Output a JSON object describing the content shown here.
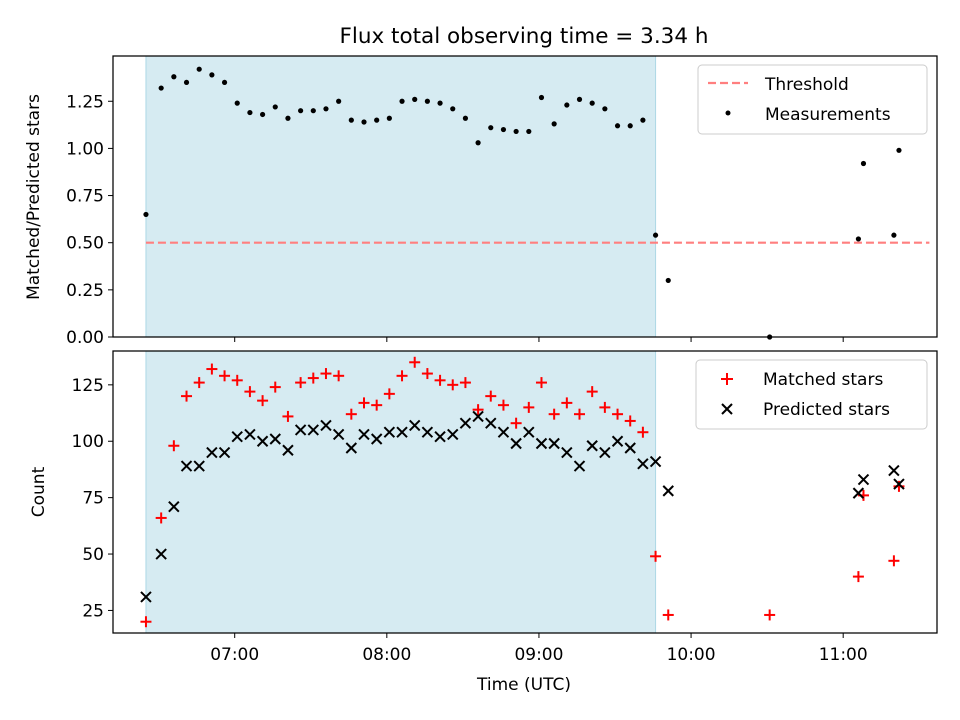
{
  "chart_data": {
    "title": "Flux total observing time = 3.34 h",
    "xlabel": "Time (UTC)",
    "xlim": [
      "06:12",
      "11:37"
    ],
    "xticks": [
      "07:00",
      "08:00",
      "09:00",
      "10:00",
      "11:00"
    ],
    "shaded_interval": {
      "start": "06:25",
      "end": "09:46",
      "color": "#add8e6"
    },
    "colors": {
      "threshold": "#ff7f7f",
      "measurements": "#000000",
      "matched": "#ff0000",
      "predicted": "#000000",
      "shade": "#add8e6"
    },
    "panels": [
      {
        "type": "scatter",
        "ylabel": "Matched/Predicted stars",
        "ylim": [
          0,
          1.49
        ],
        "yticks": [
          "0.00",
          "0.25",
          "0.50",
          "0.75",
          "1.00",
          "1.25"
        ],
        "legend": "top-right",
        "series": [
          {
            "name": "Threshold",
            "style": "dashed-line",
            "x": [
              "06:25",
              "11:34"
            ],
            "y": [
              0.5,
              0.5
            ]
          },
          {
            "name": "Measurements",
            "style": "dot",
            "x": [
              "06:25",
              "06:31",
              "06:36",
              "06:41",
              "06:46",
              "06:51",
              "06:56",
              "07:01",
              "07:06",
              "07:11",
              "07:16",
              "07:21",
              "07:26",
              "07:31",
              "07:36",
              "07:41",
              "07:46",
              "07:51",
              "07:56",
              "08:01",
              "08:06",
              "08:11",
              "08:16",
              "08:21",
              "08:26",
              "08:31",
              "08:36",
              "08:41",
              "08:46",
              "08:51",
              "08:56",
              "09:01",
              "09:06",
              "09:11",
              "09:16",
              "09:21",
              "09:26",
              "09:31",
              "09:36",
              "09:41",
              "09:46",
              "09:51",
              "10:31",
              "11:06",
              "11:08",
              "11:20",
              "11:22"
            ],
            "y": [
              0.65,
              1.32,
              1.38,
              1.35,
              1.42,
              1.39,
              1.35,
              1.24,
              1.19,
              1.18,
              1.22,
              1.16,
              1.2,
              1.2,
              1.21,
              1.25,
              1.15,
              1.14,
              1.15,
              1.16,
              1.25,
              1.26,
              1.25,
              1.24,
              1.21,
              1.16,
              1.03,
              1.11,
              1.1,
              1.09,
              1.09,
              1.27,
              1.13,
              1.23,
              1.26,
              1.24,
              1.21,
              1.12,
              1.12,
              1.15,
              0.54,
              0.3,
              0.0,
              0.52,
              0.92,
              0.54,
              0.99
            ]
          }
        ]
      },
      {
        "type": "scatter",
        "ylabel": "Count",
        "ylim": [
          15,
          140
        ],
        "yticks": [
          "25",
          "50",
          "75",
          "100",
          "125"
        ],
        "legend": "top-right",
        "series": [
          {
            "name": "Matched stars",
            "style": "plus",
            "x": [
              "06:25",
              "06:31",
              "06:36",
              "06:41",
              "06:46",
              "06:51",
              "06:56",
              "07:01",
              "07:06",
              "07:11",
              "07:16",
              "07:21",
              "07:26",
              "07:31",
              "07:36",
              "07:41",
              "07:46",
              "07:51",
              "07:56",
              "08:01",
              "08:06",
              "08:11",
              "08:16",
              "08:21",
              "08:26",
              "08:31",
              "08:36",
              "08:41",
              "08:46",
              "08:51",
              "08:56",
              "09:01",
              "09:06",
              "09:11",
              "09:16",
              "09:21",
              "09:26",
              "09:31",
              "09:36",
              "09:41",
              "09:46",
              "09:51",
              "10:31",
              "11:06",
              "11:08",
              "11:20",
              "11:22"
            ],
            "y": [
              20,
              66,
              98,
              120,
              126,
              132,
              129,
              127,
              122,
              118,
              124,
              111,
              126,
              128,
              130,
              129,
              112,
              117,
              116,
              121,
              129,
              135,
              130,
              127,
              125,
              126,
              114,
              120,
              116,
              108,
              115,
              126,
              112,
              117,
              112,
              122,
              115,
              112,
              109,
              104,
              49,
              23,
              23,
              40,
              76,
              47,
              80
            ]
          },
          {
            "name": "Predicted stars",
            "style": "x",
            "x": [
              "06:25",
              "06:31",
              "06:36",
              "06:41",
              "06:46",
              "06:51",
              "06:56",
              "07:01",
              "07:06",
              "07:11",
              "07:16",
              "07:21",
              "07:26",
              "07:31",
              "07:36",
              "07:41",
              "07:46",
              "07:51",
              "07:56",
              "08:01",
              "08:06",
              "08:11",
              "08:16",
              "08:21",
              "08:26",
              "08:31",
              "08:36",
              "08:41",
              "08:46",
              "08:51",
              "08:56",
              "09:01",
              "09:06",
              "09:11",
              "09:16",
              "09:21",
              "09:26",
              "09:31",
              "09:36",
              "09:41",
              "09:46",
              "09:51",
              "11:06",
              "11:08",
              "11:20",
              "11:22"
            ],
            "y": [
              31,
              50,
              71,
              89,
              89,
              95,
              95,
              102,
              103,
              100,
              101,
              96,
              105,
              105,
              107,
              103,
              97,
              103,
              101,
              104,
              104,
              107,
              104,
              102,
              103,
              108,
              111,
              108,
              104,
              99,
              104,
              99,
              99,
              95,
              89,
              98,
              95,
              100,
              97,
              90,
              91,
              78,
              77,
              83,
              87,
              81
            ]
          }
        ]
      }
    ]
  }
}
